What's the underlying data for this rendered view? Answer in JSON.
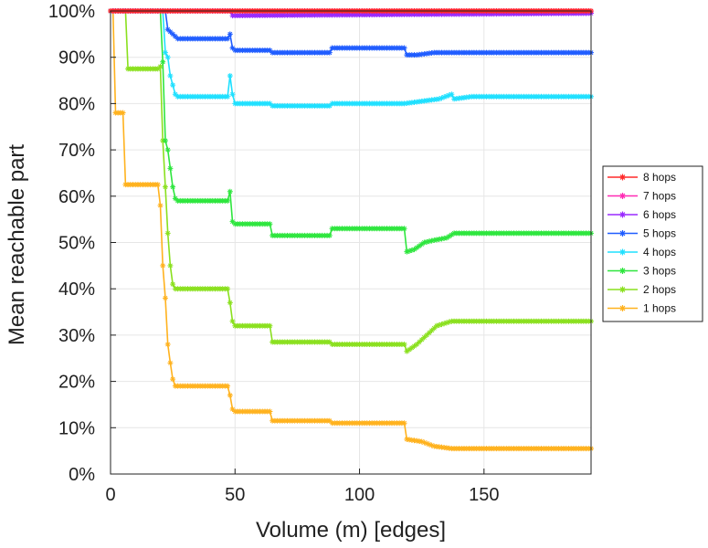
{
  "chart_data": {
    "type": "line",
    "title": "",
    "xlabel": "Volume (m) [edges]",
    "ylabel": "Mean reachable part",
    "xlim": [
      0,
      193
    ],
    "ylim": [
      0,
      100
    ],
    "x_ticks": [
      0,
      50,
      100,
      150
    ],
    "x_tick_labels": [
      "0",
      "50",
      "100",
      "150"
    ],
    "y_ticks": [
      0,
      10,
      20,
      30,
      40,
      50,
      60,
      70,
      80,
      90,
      100
    ],
    "y_tick_labels": [
      "0%",
      "10%",
      "20%",
      "30%",
      "40%",
      "50%",
      "60%",
      "70%",
      "80%",
      "90%",
      "100%"
    ],
    "grid": true,
    "legend_position": "right",
    "series": [
      {
        "name": "8 hops",
        "color": "#ff2a2a",
        "points": [
          [
            0,
            100
          ],
          [
            193,
            100
          ]
        ]
      },
      {
        "name": "7 hops",
        "color": "#ff2ab4",
        "points": [
          [
            0,
            100
          ],
          [
            193,
            100
          ]
        ]
      },
      {
        "name": "6 hops",
        "color": "#9a2aff",
        "points": [
          [
            0,
            100
          ],
          [
            48,
            100
          ],
          [
            49,
            99
          ],
          [
            193,
            99.5
          ]
        ]
      },
      {
        "name": "5 hops",
        "color": "#1f5cff",
        "points": [
          [
            0,
            100
          ],
          [
            22,
            100
          ],
          [
            23,
            96
          ],
          [
            25,
            95
          ],
          [
            27,
            94
          ],
          [
            47,
            94
          ],
          [
            48,
            95
          ],
          [
            49,
            92
          ],
          [
            50,
            91.5
          ],
          [
            64,
            91.5
          ],
          [
            65,
            91
          ],
          [
            88,
            91
          ],
          [
            89,
            92
          ],
          [
            118,
            92
          ],
          [
            119,
            90.5
          ],
          [
            123,
            90.5
          ],
          [
            130,
            91
          ],
          [
            193,
            91
          ]
        ]
      },
      {
        "name": "4 hops",
        "color": "#1fe0ff",
        "points": [
          [
            0,
            100
          ],
          [
            21,
            100
          ],
          [
            22,
            91
          ],
          [
            23,
            90
          ],
          [
            24,
            86
          ],
          [
            25,
            84
          ],
          [
            26,
            82
          ],
          [
            27,
            81.5
          ],
          [
            47,
            81.5
          ],
          [
            48,
            86
          ],
          [
            49,
            82
          ],
          [
            50,
            80
          ],
          [
            64,
            80
          ],
          [
            65,
            79.5
          ],
          [
            88,
            79.5
          ],
          [
            89,
            80
          ],
          [
            118,
            80
          ],
          [
            125,
            80.5
          ],
          [
            132,
            81
          ],
          [
            137,
            82
          ],
          [
            138,
            81
          ],
          [
            145,
            81.5
          ],
          [
            193,
            81.5
          ]
        ]
      },
      {
        "name": "3 hops",
        "color": "#2ee63e",
        "points": [
          [
            0,
            100
          ],
          [
            20,
            100
          ],
          [
            21,
            89
          ],
          [
            22,
            72
          ],
          [
            23,
            70
          ],
          [
            24,
            66
          ],
          [
            25,
            62
          ],
          [
            26,
            59.5
          ],
          [
            27,
            59
          ],
          [
            47,
            59
          ],
          [
            48,
            61
          ],
          [
            49,
            54.5
          ],
          [
            50,
            54
          ],
          [
            64,
            54
          ],
          [
            65,
            51.5
          ],
          [
            88,
            51.5
          ],
          [
            89,
            53
          ],
          [
            118,
            53
          ],
          [
            119,
            48
          ],
          [
            122,
            48.5
          ],
          [
            126,
            50
          ],
          [
            130,
            50.5
          ],
          [
            135,
            51
          ],
          [
            138,
            52
          ],
          [
            193,
            52
          ]
        ]
      },
      {
        "name": "2 hops",
        "color": "#8ae01e",
        "points": [
          [
            0,
            100
          ],
          [
            6,
            100
          ],
          [
            7,
            87.5
          ],
          [
            19,
            87.5
          ],
          [
            20,
            88
          ],
          [
            21,
            72
          ],
          [
            22,
            62
          ],
          [
            23,
            52
          ],
          [
            24,
            45
          ],
          [
            25,
            41
          ],
          [
            26,
            40
          ],
          [
            47,
            40
          ],
          [
            48,
            37
          ],
          [
            49,
            33
          ],
          [
            50,
            32
          ],
          [
            64,
            32
          ],
          [
            65,
            28.5
          ],
          [
            88,
            28.5
          ],
          [
            89,
            28
          ],
          [
            118,
            28
          ],
          [
            119,
            26.5
          ],
          [
            123,
            28
          ],
          [
            127,
            30
          ],
          [
            131,
            32
          ],
          [
            134,
            32.5
          ],
          [
            137,
            33
          ],
          [
            193,
            33
          ]
        ]
      },
      {
        "name": "1 hops",
        "color": "#ffb21e",
        "points": [
          [
            0,
            100
          ],
          [
            1,
            100
          ],
          [
            2,
            78
          ],
          [
            5,
            78
          ],
          [
            6,
            62.5
          ],
          [
            19,
            62.5
          ],
          [
            20,
            58
          ],
          [
            21,
            45
          ],
          [
            22,
            38
          ],
          [
            23,
            28
          ],
          [
            24,
            24
          ],
          [
            25,
            20.5
          ],
          [
            26,
            19
          ],
          [
            47,
            19
          ],
          [
            48,
            17
          ],
          [
            49,
            14
          ],
          [
            50,
            13.5
          ],
          [
            64,
            13.5
          ],
          [
            65,
            11.5
          ],
          [
            88,
            11.5
          ],
          [
            89,
            11
          ],
          [
            118,
            11
          ],
          [
            119,
            7.5
          ],
          [
            125,
            7
          ],
          [
            130,
            6
          ],
          [
            137,
            5.5
          ],
          [
            193,
            5.5
          ]
        ]
      }
    ]
  }
}
